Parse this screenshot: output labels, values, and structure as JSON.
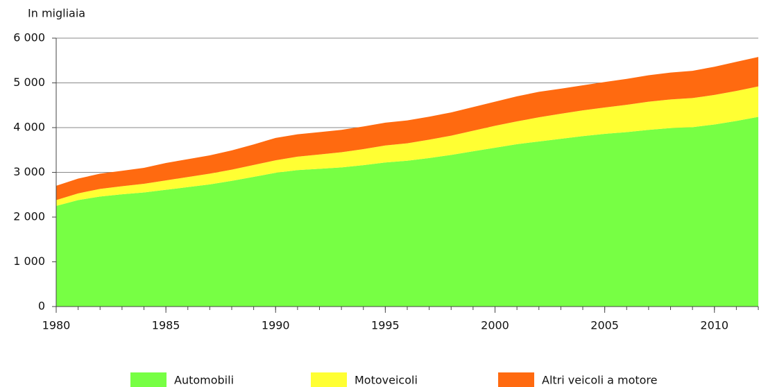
{
  "chart_data": {
    "type": "stacked_area",
    "y_label": "In migliaia",
    "x": [
      1980,
      1981,
      1982,
      1983,
      1984,
      1985,
      1986,
      1987,
      1988,
      1989,
      1990,
      1991,
      1992,
      1993,
      1994,
      1995,
      1996,
      1997,
      1998,
      1999,
      2000,
      2001,
      2002,
      2003,
      2004,
      2005,
      2006,
      2007,
      2008,
      2009,
      2010,
      2011,
      2012
    ],
    "series": [
      {
        "name": "Automobili",
        "color": "#77ff44",
        "values": [
          2250,
          2380,
          2460,
          2510,
          2550,
          2610,
          2670,
          2730,
          2810,
          2900,
          2990,
          3050,
          3080,
          3110,
          3160,
          3220,
          3260,
          3320,
          3390,
          3470,
          3550,
          3630,
          3690,
          3750,
          3810,
          3860,
          3900,
          3950,
          3990,
          4010,
          4070,
          4150,
          4240
        ]
      },
      {
        "name": "Motoveicoli",
        "color": "#ffff33",
        "values": [
          130,
          150,
          170,
          180,
          195,
          210,
          225,
          240,
          250,
          265,
          280,
          300,
          320,
          340,
          360,
          380,
          390,
          410,
          430,
          460,
          490,
          510,
          540,
          560,
          575,
          590,
          610,
          630,
          640,
          650,
          660,
          670,
          680
        ]
      },
      {
        "name": "Altri veicoli a motore",
        "color": "#ff6a10",
        "values": [
          320,
          330,
          340,
          345,
          355,
          390,
          400,
          410,
          430,
          460,
          500,
          500,
          500,
          500,
          505,
          510,
          510,
          515,
          520,
          530,
          540,
          560,
          570,
          560,
          560,
          570,
          580,
          590,
          600,
          610,
          630,
          650,
          660
        ]
      }
    ],
    "xlim": [
      1980,
      2012
    ],
    "xticks": [
      1980,
      1985,
      1990,
      1995,
      2000,
      2005,
      2010
    ],
    "ylim": [
      0,
      6000
    ],
    "yticks": [
      0,
      {
        "value": 1000,
        "label": "1 000"
      },
      {
        "value": 2000,
        "label": "2 000"
      },
      {
        "value": 3000,
        "label": "3 000"
      },
      {
        "value": 4000,
        "label": "4 000"
      },
      {
        "value": 5000,
        "label": "5 000"
      },
      {
        "value": 6000,
        "label": "6 000"
      }
    ],
    "grid": true,
    "legend": "bottom"
  }
}
